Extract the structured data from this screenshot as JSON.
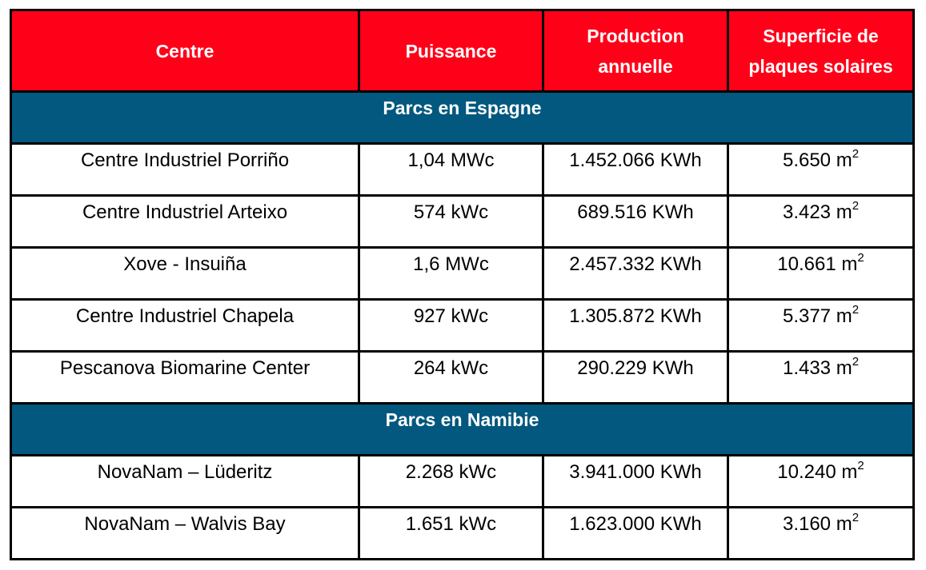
{
  "table": {
    "headers": [
      "Centre",
      "Puissance",
      "Production annuelle",
      "Superficie de plaques solaires"
    ],
    "sections": [
      {
        "title": "Parcs en Espagne",
        "rows": [
          {
            "centre": "Centre Industriel Porriño",
            "puissance": "1,04 MWc",
            "production": "1.452.066 KWh",
            "superficie": "5.650 m",
            "unit_exp": "2"
          },
          {
            "centre": "Centre Industriel Arteixo",
            "puissance": "574 kWc",
            "production": "689.516 KWh",
            "superficie": "3.423 m",
            "unit_exp": "2"
          },
          {
            "centre": "Xove - Insuiña",
            "puissance": "1,6 MWc",
            "production": "2.457.332 KWh",
            "superficie": "10.661 m",
            "unit_exp": "2"
          },
          {
            "centre": "Centre Industriel Chapela",
            "puissance": "927 kWc",
            "production": "1.305.872 KWh",
            "superficie": "5.377 m",
            "unit_exp": "2"
          },
          {
            "centre": "Pescanova Biomarine Center",
            "puissance": "264 kWc",
            "production": "290.229 KWh",
            "superficie": "1.433 m",
            "unit_exp": "2"
          }
        ]
      },
      {
        "title": "Parcs en Namibie",
        "rows": [
          {
            "centre": "NovaNam – Lüderitz",
            "puissance": "2.268 kWc",
            "production": "3.941.000 KWh",
            "superficie": "10.240 m",
            "unit_exp": "2"
          },
          {
            "centre": "NovaNam – Walvis Bay",
            "puissance": "1.651 kWc",
            "production": "1.623.000 KWh",
            "superficie": "3.160 m",
            "unit_exp": "2"
          }
        ]
      }
    ]
  },
  "colors": {
    "header_bg": "#ff0019",
    "section_bg": "#02587e",
    "border": "#000000"
  }
}
